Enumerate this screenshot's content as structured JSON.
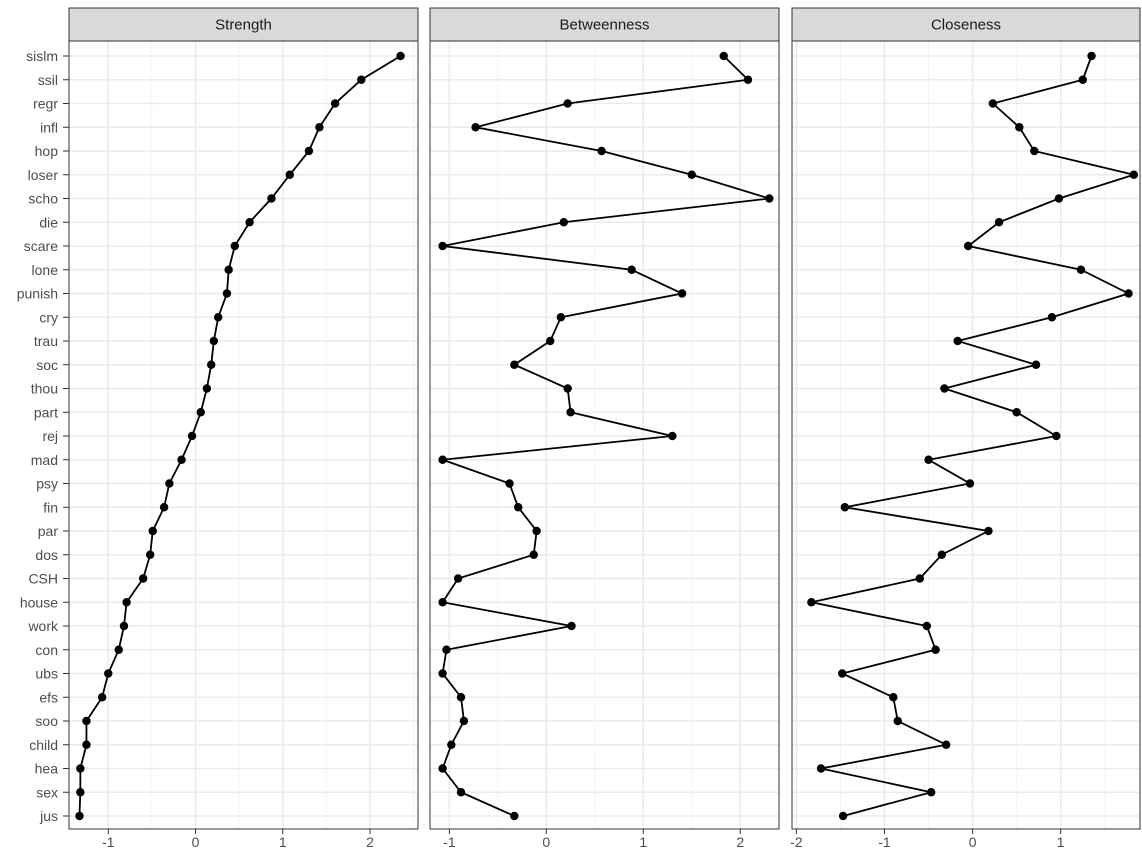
{
  "chart_data": {
    "type": "line",
    "facets": [
      "Strength",
      "Betweenness",
      "Closeness"
    ],
    "categories": [
      "sislm",
      "ssil",
      "regr",
      "infl",
      "hop",
      "loser",
      "scho",
      "die",
      "scare",
      "lone",
      "punish",
      "cry",
      "trau",
      "soc",
      "thou",
      "part",
      "rej",
      "mad",
      "psy",
      "fin",
      "par",
      "dos",
      "CSH",
      "house",
      "work",
      "con",
      "ubs",
      "efs",
      "soo",
      "child",
      "hea",
      "sex",
      "jus"
    ],
    "series": [
      {
        "name": "Strength",
        "values": [
          2.35,
          1.9,
          1.6,
          1.42,
          1.3,
          1.08,
          0.87,
          0.62,
          0.45,
          0.38,
          0.36,
          0.26,
          0.21,
          0.18,
          0.13,
          0.06,
          -0.04,
          -0.16,
          -0.3,
          -0.36,
          -0.49,
          -0.52,
          -0.6,
          -0.79,
          -0.82,
          -0.88,
          -1.0,
          -1.07,
          -1.25,
          -1.25,
          -1.32,
          -1.32,
          -1.33
        ]
      },
      {
        "name": "Betweenness",
        "values": [
          1.83,
          2.08,
          0.22,
          -0.73,
          0.57,
          1.5,
          2.3,
          0.18,
          -1.07,
          0.88,
          1.4,
          0.15,
          0.04,
          -0.33,
          0.22,
          0.25,
          1.3,
          -1.07,
          -0.38,
          -0.29,
          -0.1,
          -0.13,
          -0.91,
          -1.07,
          0.26,
          -1.03,
          -1.07,
          -0.88,
          -0.85,
          -0.98,
          -1.07,
          -0.88,
          -0.33
        ]
      },
      {
        "name": "Closeness",
        "values": [
          1.35,
          1.25,
          0.23,
          0.53,
          0.7,
          1.83,
          0.98,
          0.3,
          -0.05,
          1.23,
          1.77,
          0.9,
          -0.17,
          0.72,
          -0.32,
          0.5,
          0.95,
          -0.5,
          -0.03,
          -1.45,
          0.18,
          -0.35,
          -0.6,
          -1.83,
          -0.52,
          -0.42,
          -1.48,
          -0.9,
          -0.85,
          -0.3,
          -1.72,
          -0.47,
          -1.47
        ]
      }
    ],
    "xlim": [
      [
        -1.45,
        2.55
      ],
      [
        -1.2,
        2.4
      ],
      [
        -2.05,
        1.9
      ]
    ],
    "xticks": [
      [
        -1,
        0,
        1,
        2
      ],
      [
        -1,
        0,
        1,
        2
      ],
      [
        -2,
        -1,
        0,
        1
      ]
    ],
    "grid": true,
    "theme": "bw",
    "colors": {
      "line": "#000000",
      "point": "#000000",
      "strip_fill": "#d9d9d9",
      "grid": "#ebebeb",
      "panel_border": "#333333"
    }
  }
}
